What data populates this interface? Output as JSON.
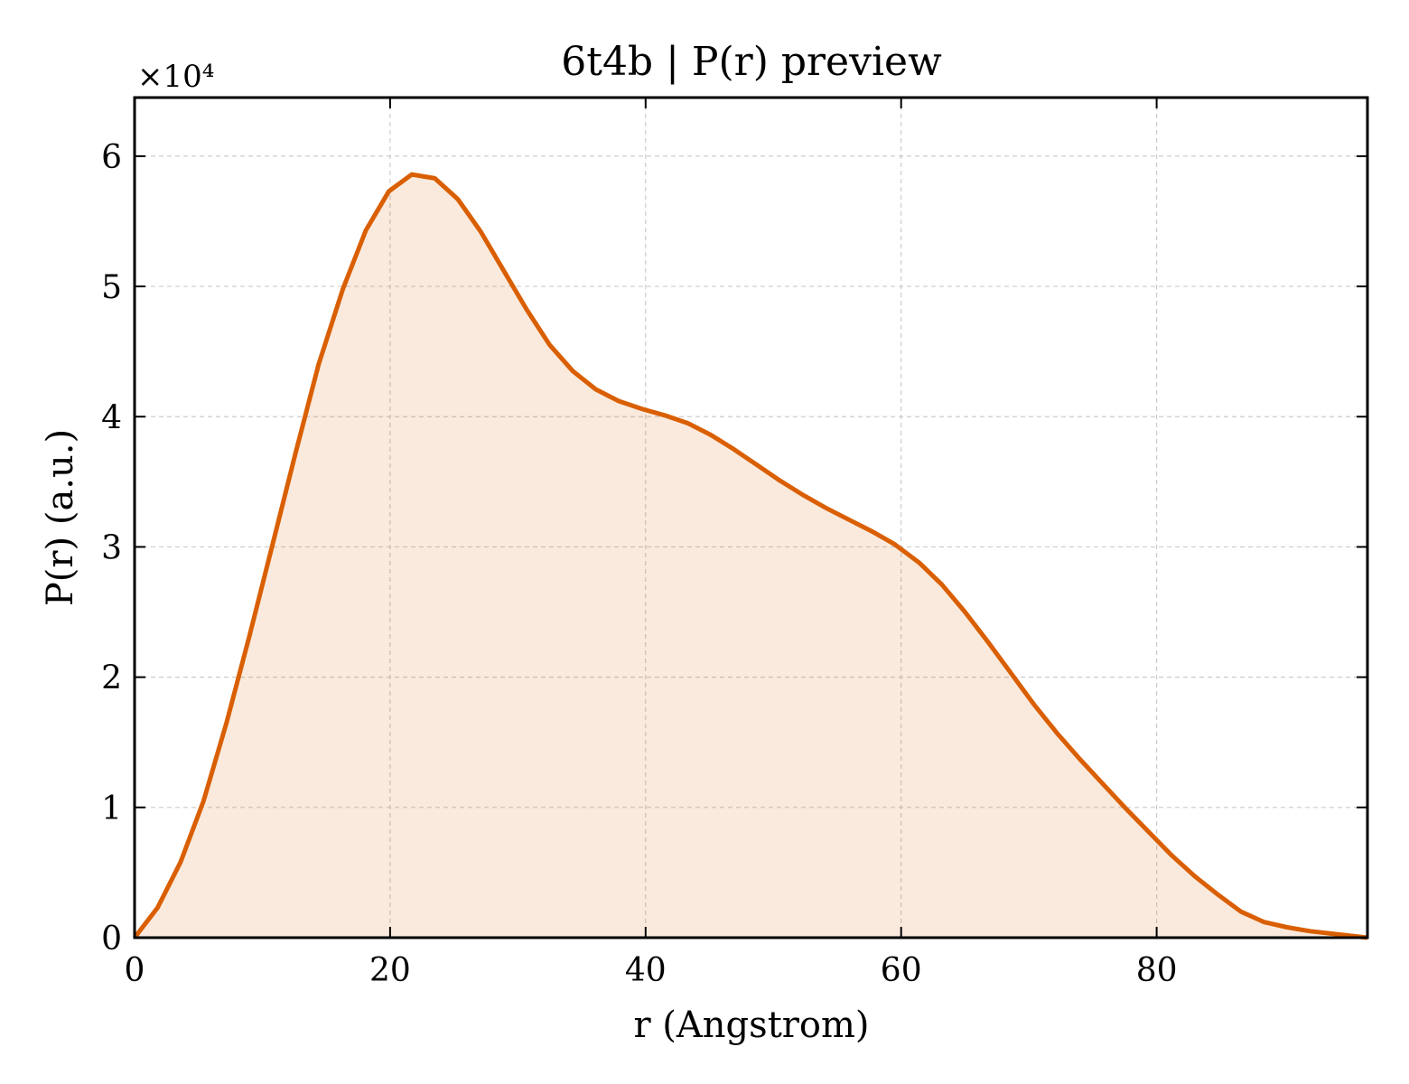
{
  "chart_data": {
    "type": "area",
    "title": "6t4b | P(r) preview",
    "xlabel": "r (Angstrom)",
    "ylabel": "P(r) (a.u.)",
    "y_offset_label": "×10⁴",
    "xlim": [
      0,
      96.5
    ],
    "ylim": [
      0,
      6.45
    ],
    "y_scale_factor": 10000,
    "grid": true,
    "x_ticks": [
      0,
      20,
      40,
      60,
      80
    ],
    "y_ticks": [
      0,
      1,
      2,
      3,
      4,
      5,
      6
    ],
    "line_color": "#d95f02",
    "fill_color": "#d95f02",
    "series": [
      {
        "x": [
          0,
          1.8,
          3.6,
          5.4,
          7.2,
          9.0,
          10.8,
          12.6,
          14.4,
          16.3,
          18.1,
          19.9,
          21.7,
          23.5,
          25.3,
          27.1,
          28.9,
          30.7,
          32.5,
          34.3,
          36.1,
          37.9,
          39.7,
          41.5,
          43.3,
          45.1,
          46.9,
          48.7,
          50.5,
          52.3,
          54.1,
          55.9,
          57.7,
          59.5,
          61.4,
          63.2,
          65.0,
          66.8,
          68.6,
          70.4,
          72.2,
          74.0,
          75.8,
          77.6,
          79.4,
          81.2,
          83.0,
          84.8,
          86.6,
          88.4,
          90.2,
          92.0,
          96.5
        ],
        "y": [
          0,
          0.23,
          0.58,
          1.05,
          1.65,
          2.32,
          3.02,
          3.72,
          4.4,
          4.98,
          5.43,
          5.73,
          5.86,
          5.83,
          5.67,
          5.42,
          5.12,
          4.82,
          4.55,
          4.35,
          4.21,
          4.12,
          4.06,
          4.01,
          3.95,
          3.86,
          3.75,
          3.63,
          3.51,
          3.4,
          3.3,
          3.21,
          3.12,
          3.02,
          2.88,
          2.71,
          2.5,
          2.27,
          2.03,
          1.79,
          1.57,
          1.37,
          1.18,
          0.99,
          0.81,
          0.63,
          0.47,
          0.33,
          0.2,
          0.12,
          0.08,
          0.05,
          0
        ]
      }
    ]
  }
}
